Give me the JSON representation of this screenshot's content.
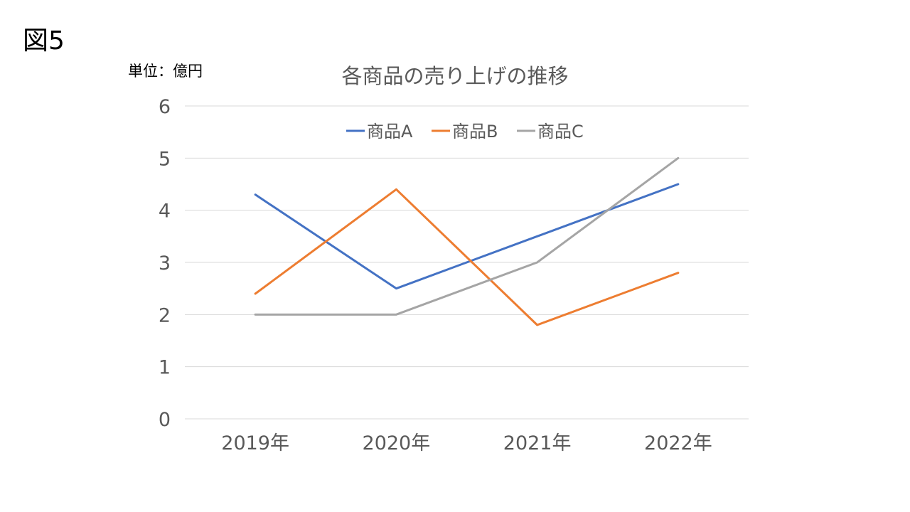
{
  "figure_label": "図5",
  "unit_label": "単位：億円",
  "chart_data": {
    "type": "line",
    "title": "各商品の売り上げの推移",
    "categories": [
      "2019年",
      "2020年",
      "2021年",
      "2022年"
    ],
    "ylim": [
      0,
      6
    ],
    "yticks": [
      0,
      1,
      2,
      3,
      4,
      5,
      6
    ],
    "grid": true,
    "legend": "top",
    "series": [
      {
        "name": "商品A",
        "color": "#4472c4",
        "values": [
          4.3,
          2.5,
          3.5,
          4.5
        ]
      },
      {
        "name": "商品B",
        "color": "#ed7d31",
        "values": [
          2.4,
          4.4,
          1.8,
          2.8
        ]
      },
      {
        "name": "商品C",
        "color": "#a5a5a5",
        "values": [
          2.0,
          2.0,
          3.0,
          5.0
        ]
      }
    ]
  }
}
